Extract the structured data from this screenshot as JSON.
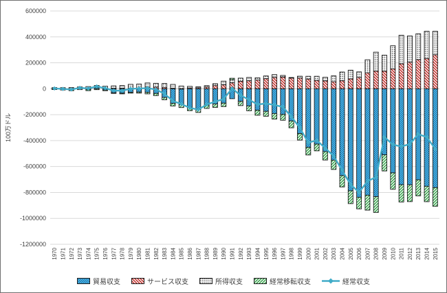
{
  "y_axis_title": "100万ドル",
  "legend": {
    "items": [
      {
        "label": "貿易収支",
        "key": "trade"
      },
      {
        "label": "サービス収支",
        "key": "services"
      },
      {
        "label": "所得収支",
        "key": "income"
      },
      {
        "label": "経常移転収支",
        "key": "transfers"
      },
      {
        "label": "経常収支",
        "key": "current"
      }
    ]
  },
  "chart_data": {
    "type": "bar",
    "subtype": "stacked-bars-with-line",
    "title": "",
    "xlabel": "",
    "ylabel": "100万ドル",
    "ylim": [
      -1200000,
      600000
    ],
    "ytick_step": 200000,
    "grid": true,
    "legend_position": "bottom",
    "categories": [
      1970,
      1971,
      1972,
      1973,
      1974,
      1975,
      1976,
      1977,
      1978,
      1979,
      1980,
      1981,
      1982,
      1983,
      1984,
      1985,
      1986,
      1987,
      1988,
      1989,
      1990,
      1991,
      1992,
      1993,
      1994,
      1995,
      1996,
      1997,
      1998,
      1999,
      2000,
      2001,
      2002,
      2003,
      2004,
      2005,
      2006,
      2007,
      2008,
      2009,
      2010,
      2011,
      2012,
      2013,
      2014,
      2015
    ],
    "series": [
      {
        "name": "貿易収支",
        "key": "trade",
        "type": "bar",
        "values": [
          2600,
          -2300,
          -6400,
          900,
          -5500,
          8900,
          -9500,
          -31100,
          -33900,
          -27600,
          -25500,
          -28000,
          -36500,
          -67100,
          -112500,
          -122200,
          -145100,
          -159600,
          -127000,
          -117700,
          -111000,
          -76900,
          -96900,
          -132500,
          -166200,
          -174200,
          -191000,
          -198100,
          -248200,
          -345600,
          -452400,
          -427200,
          -485000,
          -550900,
          -669600,
          -787100,
          -837300,
          -821200,
          -832500,
          -509700,
          -648700,
          -740600,
          -741200,
          -702600,
          -752200,
          -762600
        ]
      },
      {
        "name": "サービス収支",
        "key": "services",
        "type": "bar",
        "values": [
          -300,
          1000,
          1000,
          1000,
          1200,
          3500,
          3400,
          3800,
          4200,
          3000,
          6100,
          11900,
          12300,
          9300,
          3400,
          300,
          6500,
          7900,
          12400,
          24600,
          30200,
          45800,
          57700,
          61800,
          67300,
          77800,
          86900,
          90100,
          82600,
          82700,
          74900,
          64400,
          61200,
          54000,
          61800,
          75600,
          86900,
          123100,
          135900,
          135700,
          154000,
          192000,
          204500,
          224300,
          233100,
          262200
        ]
      },
      {
        "name": "所得収支",
        "key": "income",
        "type": "bar",
        "values": [
          6200,
          7300,
          8200,
          12200,
          15500,
          12800,
          16100,
          18100,
          20400,
          30900,
          30100,
          32900,
          29800,
          31200,
          30000,
          20600,
          11800,
          7300,
          11600,
          14300,
          28600,
          24100,
          24200,
          25300,
          17100,
          20900,
          22300,
          12600,
          4300,
          13900,
          21100,
          31700,
          27400,
          45300,
          67200,
          67600,
          43300,
          100600,
          146100,
          123600,
          177700,
          221000,
          203000,
          199700,
          210400,
          181700
        ]
      },
      {
        "name": "経常移転収支",
        "key": "transfers",
        "type": "bar",
        "values": [
          -6200,
          -7400,
          -8500,
          -6900,
          -9200,
          -7100,
          -5700,
          -5200,
          -5800,
          -6600,
          -8300,
          -11700,
          -16500,
          -17700,
          -20600,
          -22700,
          -24200,
          -23300,
          -25000,
          -26200,
          -26700,
          10800,
          -33100,
          -37600,
          -38300,
          -38100,
          -43000,
          -45100,
          -53200,
          -50400,
          -58600,
          -51900,
          -64900,
          -71800,
          -88400,
          -99500,
          -89600,
          -115100,
          -122000,
          -124500,
          -127100,
          -133100,
          -129700,
          -123700,
          -119200,
          -144700
        ]
      },
      {
        "name": "経常収支",
        "key": "current",
        "type": "line",
        "values": [
          2300,
          -1400,
          -5800,
          7100,
          2000,
          18100,
          4300,
          -14300,
          -15100,
          -300,
          2300,
          5000,
          -5500,
          -38700,
          -94300,
          -118200,
          -147200,
          -160700,
          -121200,
          -99500,
          -79000,
          2900,
          -51600,
          -84800,
          -121600,
          -113600,
          -124800,
          -140700,
          -215100,
          -301600,
          -416300,
          -397200,
          -458100,
          -518700,
          -629300,
          -739800,
          -798500,
          -713400,
          -681400,
          -372500,
          -431300,
          -445700,
          -426800,
          -349500,
          -373800,
          -463000
        ]
      }
    ],
    "colors": {
      "trade_light": "#55C4EA",
      "trade_dark": "#1B6FB0",
      "services_stripe": "#BE2823",
      "income_dot": "#111111",
      "transfers_stripe": "#2E9E44",
      "line": "#41ACC8",
      "grid": "#D9D9D9",
      "zero_line": "#BFBFBF",
      "bar_outline": "#1A1A1A",
      "text": "#404040"
    }
  }
}
